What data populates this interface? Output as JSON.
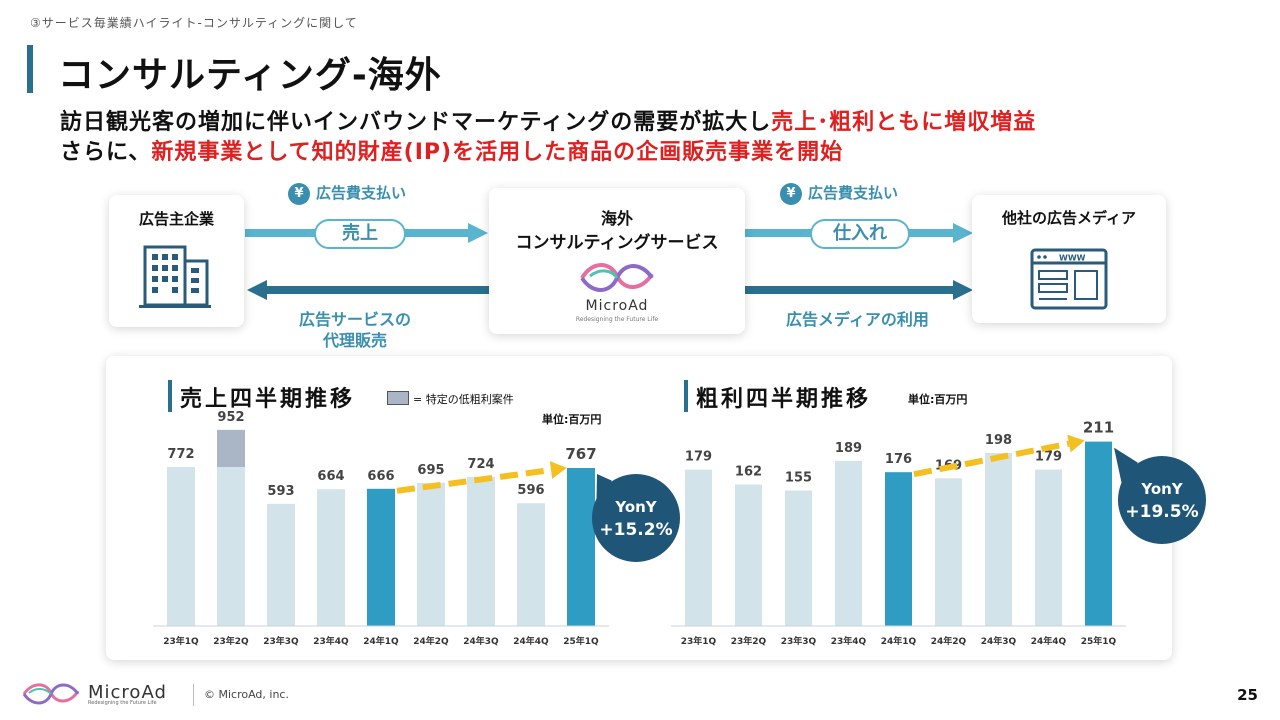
{
  "breadcrumb": "③サービス毎業績ハイライト-コンサルティングに関して",
  "page_title": "コンサルティング-海外",
  "lead": {
    "line1_normal": "訪日観光客の増加に伴いインバウンドマーケティングの需要が拡大し",
    "line1_red": "売上･粗利ともに増収増益",
    "line2_normal": "さらに、",
    "line2_red": "新規事業として知的財産(IP)を活用した商品の企画販売事業を開始"
  },
  "diagram": {
    "advertiser": "広告主企業",
    "center_line1": "海外",
    "center_line2": "コンサルティングサービス",
    "center_logo": "MicroAd",
    "center_logo_tag": "Redesigning the Future Life",
    "media": "他社の広告メディア",
    "yen": "¥",
    "ad_fee_left": "広告費支払い",
    "sales_pill": "売上",
    "ad_fee_right": "広告費支払い",
    "purchase_pill": "仕入れ",
    "agency_line1": "広告サービスの",
    "agency_line2": "代理販売",
    "media_use": "広告メディアの利用",
    "www": "WWW"
  },
  "charts": {
    "sales_title": "売上四半期推移",
    "legend": "= 特定の低粗利案件",
    "unit": "単位:百万円",
    "gross_title": "粗利四半期推移",
    "gross_unit": "単位:百万円"
  },
  "colors": {
    "light_bar": "#d3e3ea",
    "dark_bar": "#2f9cc4",
    "special": "#aab6c6",
    "arrow": "#f4c021",
    "bubble": "#1f5577"
  },
  "chart_data": [
    {
      "type": "bar",
      "title": "売上四半期推移",
      "unit": "単位:百万円",
      "categories": [
        "23年1Q",
        "23年2Q",
        "23年3Q",
        "23年4Q",
        "24年1Q",
        "24年2Q",
        "24年3Q",
        "24年4Q",
        "25年1Q"
      ],
      "values": [
        772,
        952,
        593,
        664,
        666,
        695,
        724,
        596,
        767
      ],
      "special_segment_index": 1,
      "special_segment_value": 180,
      "highlight_indices": [
        4,
        8
      ],
      "ylim": [
        0,
        1000
      ],
      "yony_label": "YonY",
      "yony_value": "+15.2%"
    },
    {
      "type": "bar",
      "title": "粗利四半期推移",
      "unit": "単位:百万円",
      "categories": [
        "23年1Q",
        "23年2Q",
        "23年3Q",
        "23年4Q",
        "24年1Q",
        "24年2Q",
        "24年3Q",
        "24年4Q",
        "25年1Q"
      ],
      "values": [
        179,
        162,
        155,
        189,
        176,
        169,
        198,
        179,
        211
      ],
      "highlight_indices": [
        4,
        8
      ],
      "ylim": [
        0,
        230
      ],
      "yony_label": "YonY",
      "yony_value": "+19.5%"
    }
  ],
  "footer": {
    "brand": "MicroAd",
    "tagline": "Redesigning the Future Life",
    "copyright": "© MicroAd, inc.",
    "page_number": "25"
  }
}
